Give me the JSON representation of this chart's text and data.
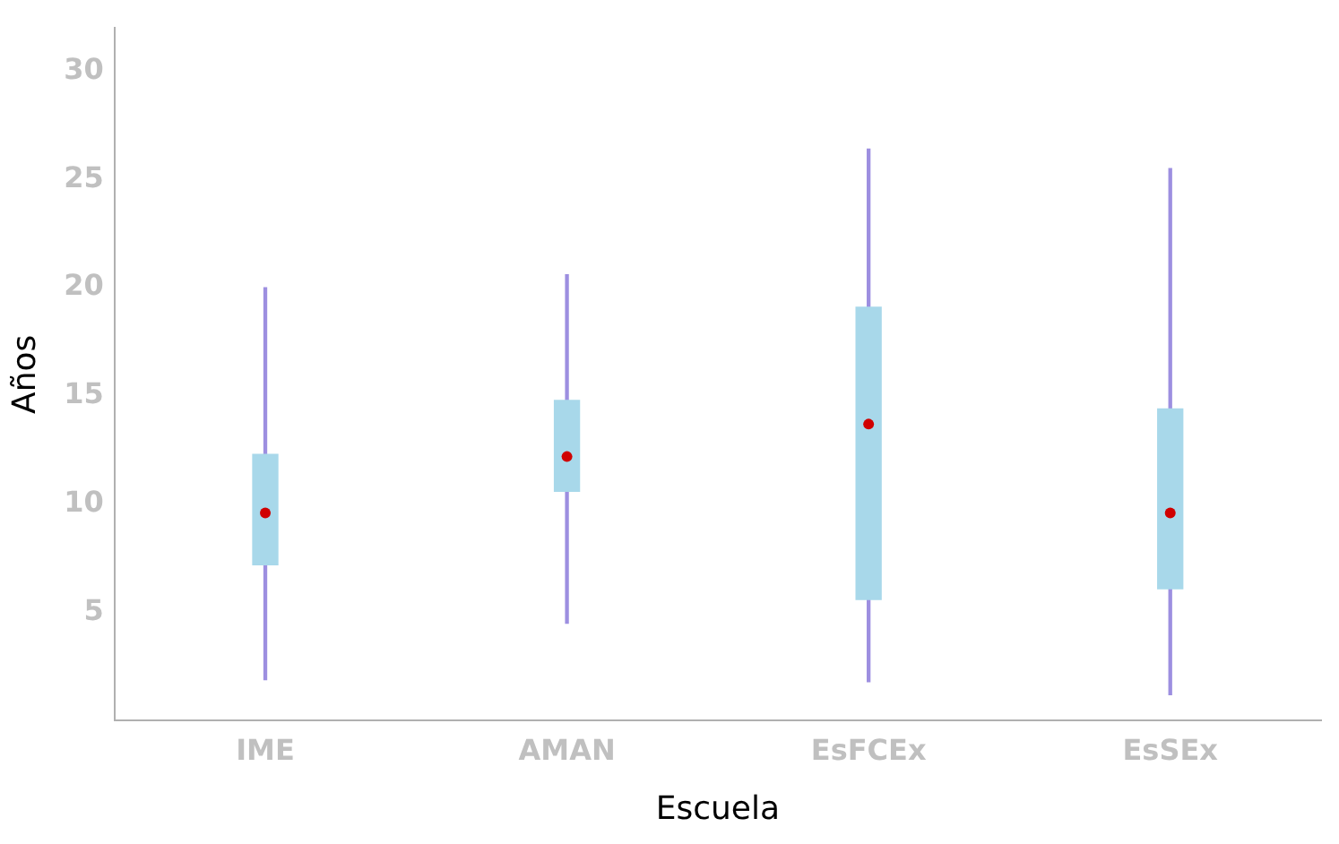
{
  "chart_data": {
    "type": "box",
    "xlabel": "Escuela",
    "ylabel": "Años",
    "categories": [
      "IME",
      "AMAN",
      "EsFCEx",
      "EsSEx"
    ],
    "series": [
      {
        "color": "#a8d8ea",
        "boxes": [
          {
            "low": 1.9,
            "q1": 7.2,
            "median": 9.6,
            "q3": 12.3,
            "high": 20
          },
          {
            "low": 4.5,
            "q1": 10.6,
            "median": 12.2,
            "q3": 14.8,
            "high": 20.6
          },
          {
            "low": 1.8,
            "q1": 5.6,
            "median": 13.7,
            "q3": 19.1,
            "high": 26.4
          },
          {
            "low": 1.2,
            "q1": 6.1,
            "median": 9.6,
            "q3": 14.4,
            "high": 25.5
          }
        ]
      }
    ],
    "ylim": [
      0,
      32
    ],
    "yticks": [
      5,
      10,
      15,
      20,
      25,
      30
    ],
    "grid": false,
    "legend": false
  }
}
